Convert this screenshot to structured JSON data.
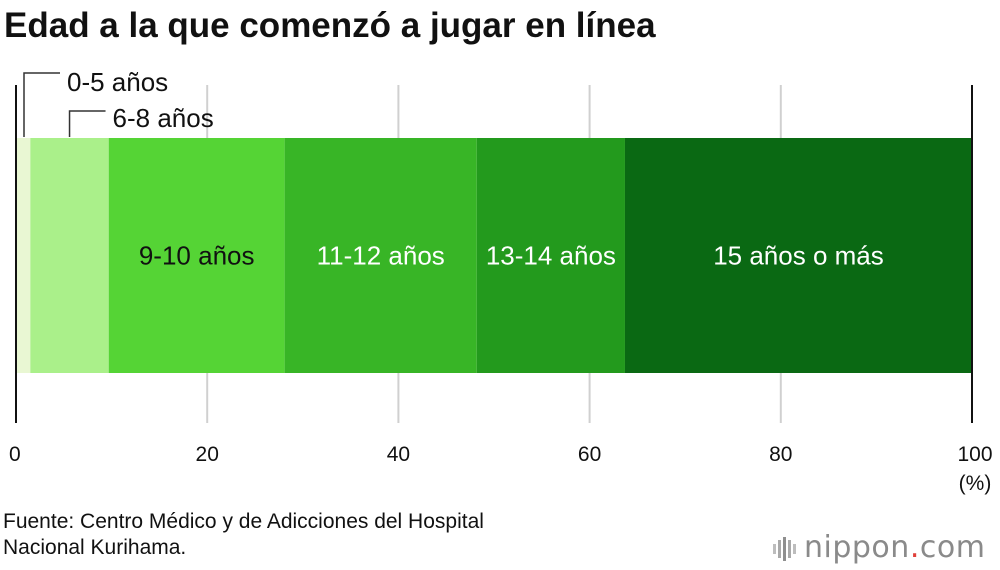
{
  "title": "Edad a la que comenzó a jugar en línea",
  "source": {
    "line1": "Fuente: Centro Médico y de Adicciones del Hospital",
    "line2": "Nacional Kurihama."
  },
  "logo": {
    "brand": "nippon",
    "dot": ".",
    "tld": "com"
  },
  "chart_data": {
    "type": "bar",
    "orientation": "horizontal-stacked-100",
    "title": "Edad a la que comenzó a jugar en línea",
    "xlabel": "(%)",
    "xlim": [
      0,
      100
    ],
    "ticks": [
      0,
      20,
      40,
      60,
      80,
      100
    ],
    "tick_labels": [
      "0",
      "20",
      "40",
      "60",
      "80",
      "100"
    ],
    "unit_label": "(%)",
    "grid": true,
    "series": [
      {
        "name": "0-5 años",
        "value": 1.5,
        "color": "#e9f7d3",
        "label_outside": true,
        "label_color": "#111111"
      },
      {
        "name": "6-8 años",
        "value": 8.2,
        "color": "#aaf08a",
        "label_outside": true,
        "label_color": "#111111"
      },
      {
        "name": "9-10 años",
        "value": 18.4,
        "color": "#55d435",
        "label_outside": false,
        "label_color": "#111111"
      },
      {
        "name": "11-12 años",
        "value": 20.1,
        "color": "#38b526",
        "label_outside": false,
        "label_color": "#ffffff"
      },
      {
        "name": "13-14 años",
        "value": 15.5,
        "color": "#239a1d",
        "label_outside": false,
        "label_color": "#ffffff"
      },
      {
        "name": "15 años o más",
        "value": 36.3,
        "color": "#0a6913",
        "label_outside": false,
        "label_color": "#ffffff"
      }
    ]
  }
}
